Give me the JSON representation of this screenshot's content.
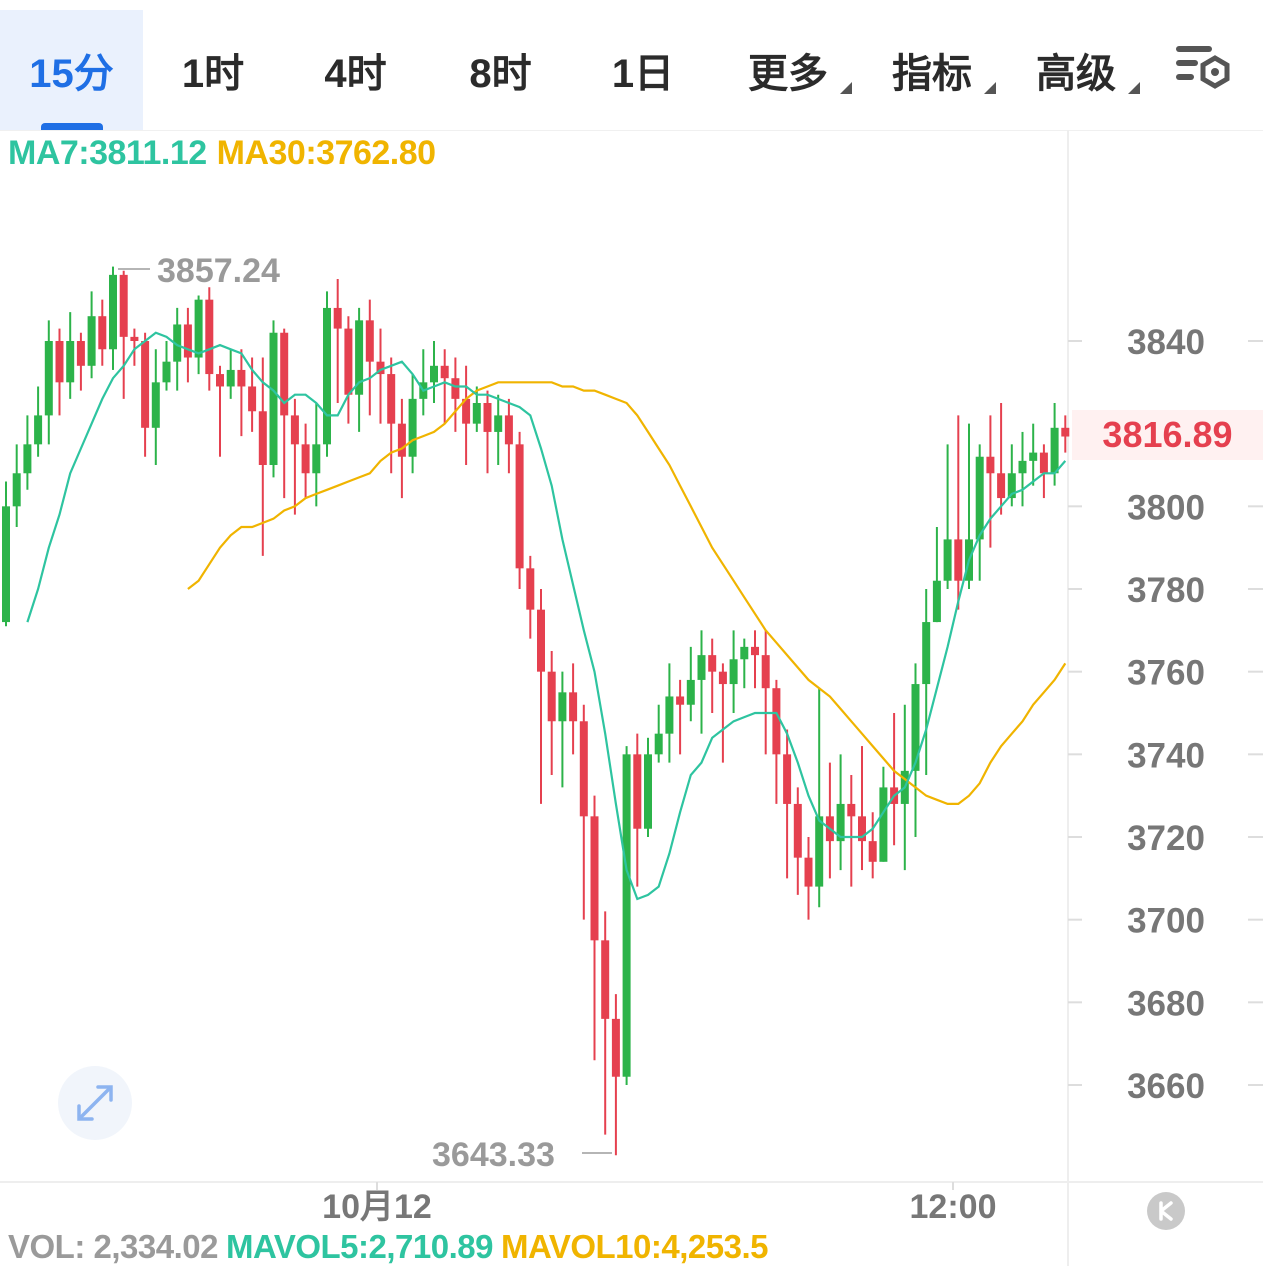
{
  "tabs": [
    {
      "label": "15分",
      "active": true
    },
    {
      "label": "1时"
    },
    {
      "label": "4时"
    },
    {
      "label": "8时"
    },
    {
      "label": "1日"
    },
    {
      "label": "更多",
      "dropdown": true
    },
    {
      "label": "指标",
      "dropdown": true
    },
    {
      "label": "高级",
      "dropdown": true
    }
  ],
  "settings_icon": "chart-settings-icon",
  "legend": {
    "ma7": "MA7:3811.12",
    "ma30": "MA30:3762.80"
  },
  "price_tag": "3816.89",
  "extremes": {
    "high": "3857.24",
    "low": "3643.33"
  },
  "y_axis_labels": [
    "3840",
    "3800",
    "3780",
    "3760",
    "3740",
    "3720",
    "3700",
    "3680",
    "3660"
  ],
  "x_axis_labels": [
    "10月12",
    "12:00"
  ],
  "volume_legend": {
    "vol": "VOL: 2,334.02",
    "mavol5": "MAVOL5:2,710.89",
    "mavol10": "MAVOL10:4,253.5"
  },
  "colors": {
    "up": "#2cb34a",
    "down": "#e5404f",
    "ma7": "#2ec4a0",
    "ma30": "#f0b400",
    "active_tab": "#1f6fe5"
  },
  "icons": {
    "expand": "expand-arrows-icon",
    "logo": "brand-logo-icon"
  },
  "chart_data": {
    "type": "candlestick",
    "interval": "15分",
    "ylim": [
      3640,
      3870
    ],
    "y_ticks": [
      3660,
      3680,
      3700,
      3720,
      3740,
      3760,
      3780,
      3800,
      3840
    ],
    "last_price": 3816.89,
    "candles": [
      [
        3772,
        3800,
        3806,
        3771
      ],
      [
        3800,
        3808,
        3815,
        3795
      ],
      [
        3808,
        3815,
        3822,
        3804
      ],
      [
        3815,
        3822,
        3829,
        3812
      ],
      [
        3822,
        3840,
        3845,
        3815
      ],
      [
        3840,
        3830,
        3843,
        3822
      ],
      [
        3830,
        3840,
        3847,
        3826
      ],
      [
        3840,
        3834,
        3842,
        3828
      ],
      [
        3834,
        3846,
        3852,
        3831
      ],
      [
        3846,
        3838,
        3850,
        3834
      ],
      [
        3838,
        3856,
        3858,
        3833
      ],
      [
        3856,
        3841,
        3857,
        3826
      ],
      [
        3841,
        3840,
        3843,
        3834
      ],
      [
        3840,
        3819,
        3842,
        3812
      ],
      [
        3819,
        3830,
        3838,
        3810
      ],
      [
        3830,
        3835,
        3840,
        3828
      ],
      [
        3835,
        3844,
        3848,
        3828
      ],
      [
        3844,
        3836,
        3848,
        3830
      ],
      [
        3836,
        3850,
        3851,
        3832
      ],
      [
        3850,
        3832,
        3853,
        3828
      ],
      [
        3832,
        3829,
        3834,
        3812
      ],
      [
        3829,
        3833,
        3838,
        3826
      ],
      [
        3833,
        3829,
        3838,
        3817
      ],
      [
        3829,
        3823,
        3836,
        3818
      ],
      [
        3823,
        3810,
        3836,
        3788
      ],
      [
        3810,
        3842,
        3845,
        3807
      ],
      [
        3842,
        3822,
        3843,
        3802
      ],
      [
        3822,
        3815,
        3826,
        3798
      ],
      [
        3815,
        3808,
        3820,
        3802
      ],
      [
        3808,
        3815,
        3825,
        3800
      ],
      [
        3815,
        3848,
        3852,
        3812
      ],
      [
        3848,
        3843,
        3855,
        3825
      ],
      [
        3843,
        3827,
        3846,
        3820
      ],
      [
        3827,
        3845,
        3848,
        3818
      ],
      [
        3845,
        3835,
        3850,
        3822
      ],
      [
        3835,
        3832,
        3843,
        3820
      ],
      [
        3832,
        3820,
        3836,
        3808
      ],
      [
        3820,
        3812,
        3826,
        3802
      ],
      [
        3812,
        3826,
        3832,
        3808
      ],
      [
        3826,
        3830,
        3838,
        3822
      ],
      [
        3830,
        3834,
        3840,
        3825
      ],
      [
        3834,
        3831,
        3838,
        3820
      ],
      [
        3831,
        3826,
        3836,
        3818
      ],
      [
        3826,
        3820,
        3834,
        3810
      ],
      [
        3820,
        3825,
        3829,
        3818
      ],
      [
        3825,
        3818,
        3828,
        3808
      ],
      [
        3818,
        3822,
        3827,
        3810
      ],
      [
        3822,
        3815,
        3826,
        3808
      ],
      [
        3815,
        3785,
        3818,
        3780
      ],
      [
        3785,
        3775,
        3788,
        3768
      ],
      [
        3775,
        3760,
        3780,
        3728
      ],
      [
        3760,
        3748,
        3765,
        3735
      ],
      [
        3748,
        3755,
        3760,
        3732
      ],
      [
        3755,
        3748,
        3762,
        3740
      ],
      [
        3748,
        3725,
        3752,
        3700
      ],
      [
        3725,
        3695,
        3730,
        3666
      ],
      [
        3695,
        3676,
        3702,
        3648
      ],
      [
        3676,
        3662,
        3682,
        3643
      ],
      [
        3662,
        3740,
        3742,
        3660
      ],
      [
        3740,
        3722,
        3745,
        3708
      ],
      [
        3722,
        3740,
        3744,
        3720
      ],
      [
        3740,
        3745,
        3752,
        3738
      ],
      [
        3745,
        3754,
        3762,
        3738
      ],
      [
        3754,
        3752,
        3758,
        3740
      ],
      [
        3752,
        3758,
        3766,
        3748
      ],
      [
        3758,
        3764,
        3770,
        3745
      ],
      [
        3764,
        3760,
        3768,
        3750
      ],
      [
        3760,
        3757,
        3762,
        3738
      ],
      [
        3757,
        3763,
        3770,
        3750
      ],
      [
        3763,
        3766,
        3768,
        3756
      ],
      [
        3766,
        3764,
        3770,
        3756
      ],
      [
        3764,
        3756,
        3770,
        3740
      ],
      [
        3756,
        3740,
        3758,
        3728
      ],
      [
        3740,
        3728,
        3746,
        3710
      ],
      [
        3728,
        3715,
        3732,
        3706
      ],
      [
        3715,
        3708,
        3720,
        3700
      ],
      [
        3708,
        3725,
        3756,
        3703
      ],
      [
        3725,
        3719,
        3738,
        3710
      ],
      [
        3719,
        3728,
        3740,
        3712
      ],
      [
        3728,
        3725,
        3735,
        3708
      ],
      [
        3725,
        3719,
        3742,
        3712
      ],
      [
        3719,
        3714,
        3726,
        3710
      ],
      [
        3714,
        3732,
        3737,
        3714
      ],
      [
        3732,
        3728,
        3750,
        3718
      ],
      [
        3728,
        3736,
        3752,
        3712
      ],
      [
        3736,
        3757,
        3762,
        3720
      ],
      [
        3757,
        3772,
        3780,
        3735
      ],
      [
        3772,
        3782,
        3795,
        3772
      ],
      [
        3782,
        3792,
        3815,
        3780
      ],
      [
        3792,
        3782,
        3822,
        3775
      ],
      [
        3782,
        3792,
        3820,
        3780
      ],
      [
        3792,
        3812,
        3815,
        3782
      ],
      [
        3812,
        3808,
        3822,
        3790
      ],
      [
        3808,
        3802,
        3825,
        3798
      ],
      [
        3802,
        3808,
        3815,
        3800
      ],
      [
        3808,
        3811,
        3818,
        3800
      ],
      [
        3811,
        3813,
        3820,
        3805
      ],
      [
        3813,
        3808,
        3815,
        3802
      ],
      [
        3808,
        3819,
        3825,
        3805
      ],
      [
        3819,
        3816.89,
        3822,
        3813
      ]
    ],
    "ma7": [
      3772,
      3780,
      3790,
      3798,
      3808,
      3814,
      3820,
      3826,
      3831,
      3834,
      3838,
      3840,
      3842,
      3841,
      3839,
      3838,
      3837,
      3838,
      3839,
      3838,
      3837,
      3833,
      3830,
      3828,
      3825,
      3827,
      3827,
      3825,
      3822,
      3822,
      3827,
      3830,
      3831,
      3833,
      3834,
      3835,
      3832,
      3828,
      3829,
      3830,
      3829,
      3829,
      3827,
      3827,
      3826,
      3825,
      3824,
      3822,
      3814,
      3805,
      3792,
      3781,
      3770,
      3760,
      3745,
      3728,
      3712,
      3705,
      3706,
      3708,
      3716,
      3726,
      3735,
      3738,
      3744,
      3746,
      3748,
      3749,
      3750,
      3750,
      3750,
      3745,
      3738,
      3730,
      3724,
      3722,
      3720,
      3720,
      3720,
      3722,
      3726,
      3730,
      3732,
      3738,
      3746,
      3756,
      3766,
      3777,
      3787,
      3793,
      3797,
      3800,
      3803,
      3804,
      3806,
      3808,
      3808,
      3811
    ],
    "ma30": [
      3780,
      3782,
      3786,
      3790,
      3793,
      3795,
      3795,
      3796,
      3797,
      3799,
      3800,
      3802,
      3803,
      3804,
      3805,
      3806,
      3807,
      3808,
      3811,
      3813,
      3814,
      3816,
      3817,
      3818,
      3820,
      3823,
      3826,
      3828,
      3829,
      3830,
      3830,
      3830,
      3830,
      3830,
      3830,
      3829,
      3829,
      3828,
      3828,
      3827,
      3826,
      3825,
      3822,
      3818,
      3814,
      3810,
      3805,
      3800,
      3795,
      3790,
      3786,
      3782,
      3778,
      3774,
      3770,
      3767,
      3764,
      3761,
      3758,
      3756,
      3754,
      3751,
      3748,
      3745,
      3742,
      3739,
      3736,
      3734,
      3732,
      3730,
      3729,
      3728,
      3728,
      3730,
      3733,
      3738,
      3742,
      3745,
      3748,
      3752,
      3755,
      3758,
      3762
    ]
  }
}
